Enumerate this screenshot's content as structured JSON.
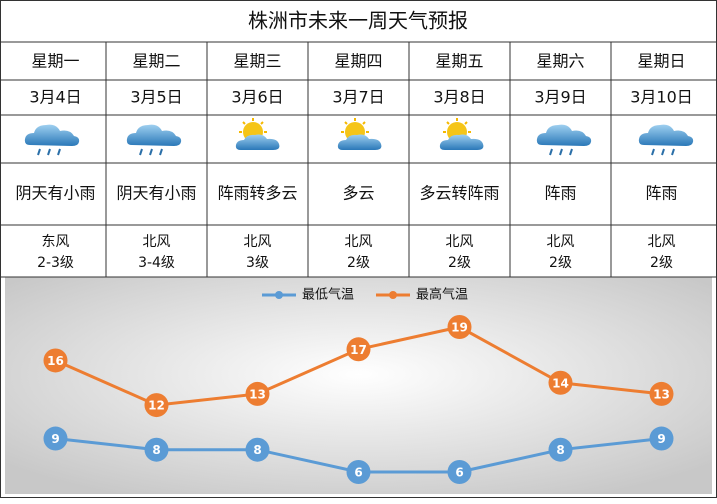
{
  "header": {
    "title": "株洲市未来一周天气预报"
  },
  "days": [
    {
      "weekday": "星期一",
      "date": "3月4日",
      "condition": "阴天有小雨",
      "wind_direction": "东风",
      "wind_level": "2-3级"
    },
    {
      "weekday": "星期二",
      "date": "3月5日",
      "condition": "阴天有小雨",
      "wind_direction": "北风",
      "wind_level": "3-4级"
    },
    {
      "weekday": "星期三",
      "date": "3月6日",
      "condition": "阵雨转多云",
      "wind_direction": "北风",
      "wind_level": "3级"
    },
    {
      "weekday": "星期四",
      "date": "3月7日",
      "condition": "多云",
      "wind_direction": "北风",
      "wind_level": "2级"
    },
    {
      "weekday": "星期五",
      "date": "3月8日",
      "condition": "多云转阵雨",
      "wind_direction": "北风",
      "wind_level": "2级"
    },
    {
      "weekday": "星期六",
      "date": "3月9日",
      "condition": "阵雨",
      "wind_direction": "北风",
      "wind_level": "2级"
    },
    {
      "weekday": "星期日",
      "date": "3月10日",
      "condition": "阵雨",
      "wind_direction": "北风",
      "wind_level": "2级"
    }
  ],
  "chart_data": {
    "type": "line",
    "categories": [
      null,
      null,
      null,
      null,
      null,
      null,
      null
    ],
    "series": [
      {
        "name": "最低气温",
        "color": "#5b9bd5",
        "values": [
          9,
          8,
          8,
          6,
          6,
          8,
          9
        ]
      },
      {
        "name": "最高气温",
        "color": "#ed7d31",
        "values": [
          16,
          12,
          13,
          17,
          19,
          14,
          13
        ]
      }
    ],
    "legend": "top"
  }
}
